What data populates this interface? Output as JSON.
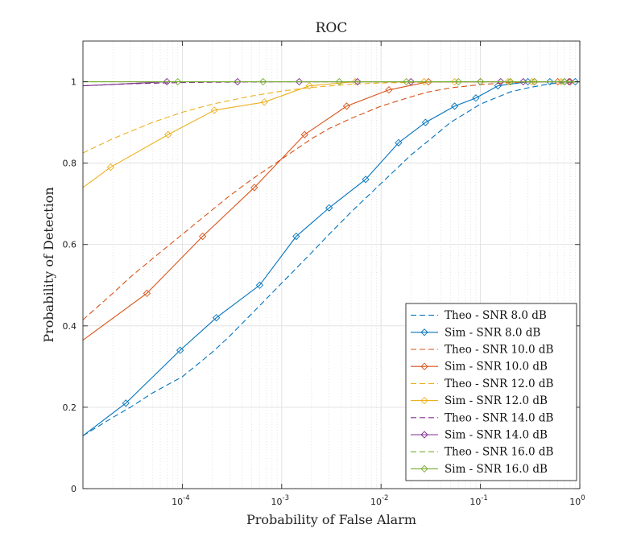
{
  "chart_data": {
    "type": "line",
    "title": "ROC",
    "xlabel": "Probability of False Alarm",
    "ylabel": "Probability of Detection",
    "xscale": "log",
    "xlim": [
      1e-05,
      1
    ],
    "ylim": [
      0,
      1.1
    ],
    "grid": true,
    "legend_position": "bottom-right",
    "x_ticks": [
      {
        "value": 0.0001,
        "base": "10",
        "exp": "-4"
      },
      {
        "value": 0.001,
        "base": "10",
        "exp": "-3"
      },
      {
        "value": 0.01,
        "base": "10",
        "exp": "-2"
      },
      {
        "value": 0.1,
        "base": "10",
        "exp": "-1"
      },
      {
        "value": 1,
        "base": "10",
        "exp": "0"
      }
    ],
    "y_ticks": [
      {
        "value": 0,
        "label": "0"
      },
      {
        "value": 0.2,
        "label": "0.2"
      },
      {
        "value": 0.4,
        "label": "0.4"
      },
      {
        "value": 0.6,
        "label": "0.6"
      },
      {
        "value": 0.8,
        "label": "0.8"
      },
      {
        "value": 1,
        "label": "1"
      }
    ],
    "series": [
      {
        "name": "Theo - SNR 8.0 dB",
        "style": "dashed",
        "marker": "none",
        "color": "#0072BD",
        "x": [
          1e-05,
          2e-05,
          3e-05,
          5e-05,
          0.0001,
          0.0002,
          0.0003,
          0.0005,
          0.001,
          0.002,
          0.003,
          0.005,
          0.01,
          0.02,
          0.03,
          0.05,
          0.1,
          0.2,
          0.3,
          0.5,
          1
        ],
        "y": [
          0.13,
          0.175,
          0.2,
          0.235,
          0.275,
          0.335,
          0.375,
          0.43,
          0.505,
          0.58,
          0.625,
          0.68,
          0.75,
          0.82,
          0.855,
          0.9,
          0.945,
          0.975,
          0.985,
          0.995,
          1.0
        ]
      },
      {
        "name": "Sim - SNR 8.0 dB",
        "style": "solid",
        "marker": "diamond",
        "color": "#0072BD",
        "x": [
          1e-05,
          2.7e-05,
          9.5e-05,
          0.00022,
          0.0006,
          0.0014,
          0.003,
          0.007,
          0.015,
          0.028,
          0.055,
          0.09,
          0.15,
          0.3,
          0.5,
          0.7,
          0.9,
          1
        ],
        "y": [
          0.13,
          0.21,
          0.34,
          0.42,
          0.5,
          0.62,
          0.69,
          0.76,
          0.85,
          0.9,
          0.94,
          0.96,
          0.99,
          1.0,
          1.0,
          1.0,
          1.0,
          1.0
        ]
      },
      {
        "name": "Theo - SNR 10.0 dB",
        "style": "dashed",
        "marker": "none",
        "color": "#D95319",
        "x": [
          1e-05,
          2e-05,
          3e-05,
          5e-05,
          0.0001,
          0.0002,
          0.0003,
          0.0005,
          0.001,
          0.002,
          0.003,
          0.005,
          0.01,
          0.02,
          0.03,
          0.05,
          0.1,
          0.2,
          0.5,
          1
        ],
        "y": [
          0.415,
          0.48,
          0.52,
          0.565,
          0.625,
          0.685,
          0.72,
          0.76,
          0.81,
          0.86,
          0.885,
          0.91,
          0.94,
          0.963,
          0.975,
          0.985,
          0.993,
          0.998,
          1.0,
          1.0
        ]
      },
      {
        "name": "Sim - SNR 10.0 dB",
        "style": "solid",
        "marker": "diamond",
        "color": "#D95319",
        "x": [
          1e-05,
          4.4e-05,
          0.00016,
          0.00053,
          0.0017,
          0.0045,
          0.012,
          0.03,
          0.1,
          0.2,
          0.35,
          0.6,
          0.8,
          1
        ],
        "y": [
          0.365,
          0.48,
          0.62,
          0.74,
          0.87,
          0.94,
          0.98,
          1.0,
          1.0,
          1.0,
          1.0,
          1.0,
          1.0,
          1.0
        ]
      },
      {
        "name": "Theo - SNR 12.0 dB",
        "style": "dashed",
        "marker": "none",
        "color": "#EDB120",
        "x": [
          1e-05,
          2e-05,
          5e-05,
          0.0001,
          0.0002,
          0.0005,
          0.001,
          0.002,
          0.005,
          0.01,
          0.03,
          0.1,
          1
        ],
        "y": [
          0.825,
          0.86,
          0.9,
          0.925,
          0.945,
          0.965,
          0.977,
          0.986,
          0.994,
          0.997,
          0.999,
          1.0,
          1.0
        ]
      },
      {
        "name": "Sim - SNR 12.0 dB",
        "style": "solid",
        "marker": "diamond",
        "color": "#EDB120",
        "x": [
          1e-05,
          1.9e-05,
          7.2e-05,
          0.00021,
          0.00067,
          0.0019,
          0.0055,
          0.027,
          0.055,
          0.19,
          0.33,
          0.65,
          1
        ],
        "y": [
          0.74,
          0.79,
          0.87,
          0.93,
          0.95,
          0.99,
          1.0,
          1.0,
          1.0,
          1.0,
          1.0,
          1.0,
          1.0
        ]
      },
      {
        "name": "Theo - SNR 14.0 dB",
        "style": "dashed",
        "marker": "none",
        "color": "#7E2F8E",
        "x": [
          1e-05,
          3e-05,
          0.0001,
          0.001,
          1
        ],
        "y": [
          0.99,
          0.995,
          0.998,
          1.0,
          1.0
        ]
      },
      {
        "name": "Sim - SNR 14.0 dB",
        "style": "solid",
        "marker": "diamond",
        "color": "#7E2F8E",
        "x": [
          1e-05,
          7e-05,
          0.00036,
          0.0015,
          0.0058,
          0.02,
          0.16,
          0.27,
          0.78,
          1
        ],
        "y": [
          0.99,
          1.0,
          1.0,
          1.0,
          1.0,
          1.0,
          1.0,
          1.0,
          1.0,
          1.0
        ]
      },
      {
        "name": "Theo - SNR 16.0 dB",
        "style": "dashed",
        "marker": "none",
        "color": "#77AC30",
        "x": [
          1e-05,
          1
        ],
        "y": [
          1.0,
          1.0
        ]
      },
      {
        "name": "Sim - SNR 16.0 dB",
        "style": "solid",
        "marker": "diamond",
        "color": "#77AC30",
        "x": [
          1e-05,
          9e-05,
          0.00065,
          0.0038,
          0.018,
          0.06,
          0.1,
          0.2,
          0.35,
          0.7,
          1
        ],
        "y": [
          1.0,
          1.0,
          1.0,
          1.0,
          1.0,
          1.0,
          1.0,
          1.0,
          1.0,
          1.0,
          1.0
        ]
      }
    ]
  }
}
